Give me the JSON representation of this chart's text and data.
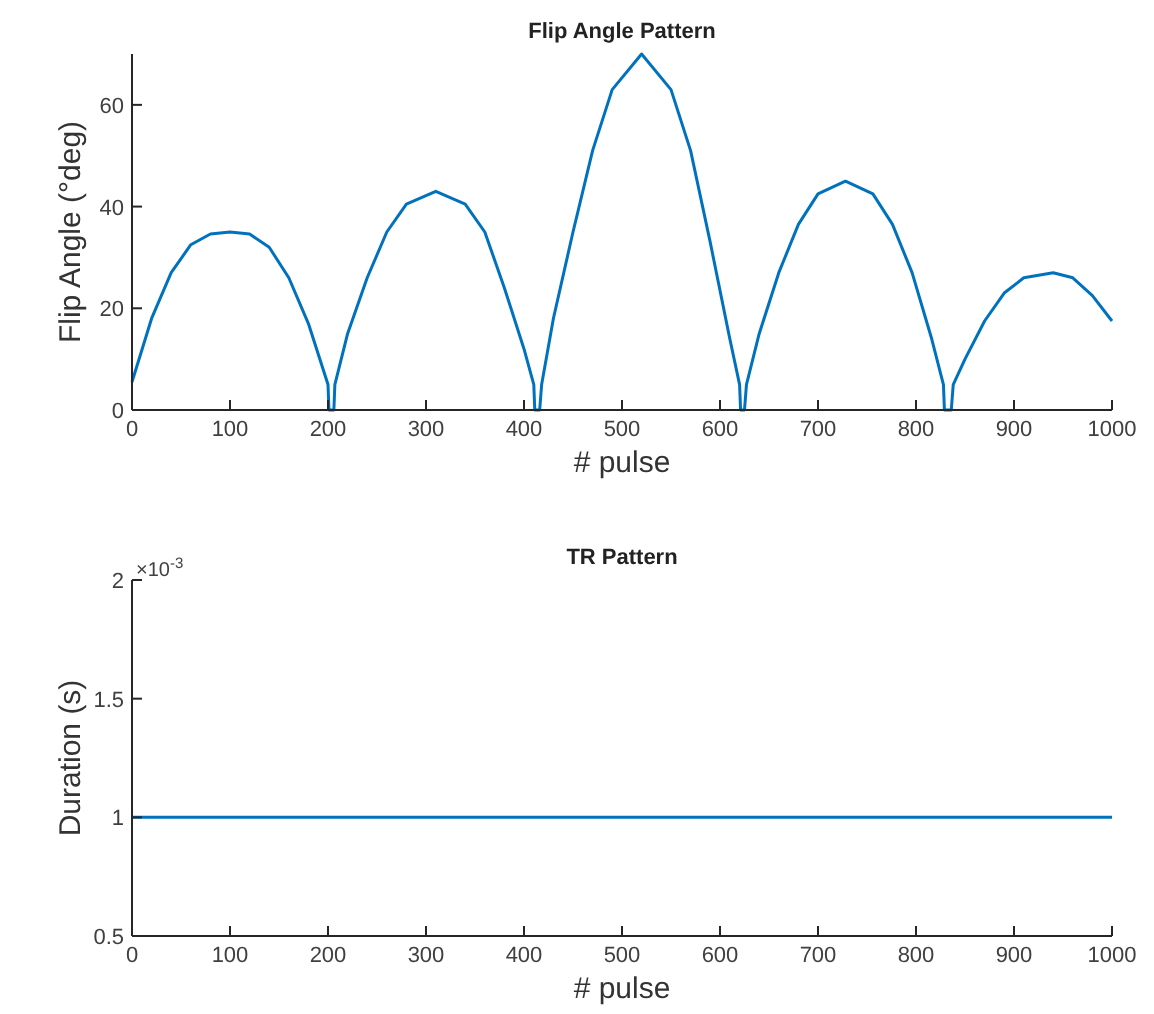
{
  "chart_data": [
    {
      "type": "line",
      "title": "Flip Angle Pattern",
      "xlabel": "# pulse",
      "ylabel": "Flip Angle (°deg)",
      "xlim": [
        0,
        1000
      ],
      "ylim": [
        0,
        70
      ],
      "xticks": [
        0,
        100,
        200,
        300,
        400,
        500,
        600,
        700,
        800,
        900,
        1000
      ],
      "yticks": [
        0,
        20,
        40,
        60
      ],
      "grid": false,
      "series": [
        {
          "color": "#0072bd",
          "x": [
            0,
            20,
            40,
            60,
            80,
            100,
            120,
            140,
            160,
            180,
            195,
            200,
            201,
            206,
            207,
            220,
            240,
            260,
            280,
            310,
            340,
            360,
            380,
            400,
            410,
            411,
            416,
            418,
            430,
            450,
            470,
            490,
            520,
            550,
            570,
            590,
            610,
            620,
            621,
            625,
            627,
            640,
            660,
            680,
            700,
            728,
            756,
            776,
            796,
            816,
            828,
            829,
            836,
            838,
            850,
            870,
            890,
            910,
            940,
            960,
            980,
            1000
          ],
          "values": [
            5.5,
            18,
            27,
            32.5,
            34.6,
            35,
            34.6,
            32,
            26,
            17,
            8,
            5,
            0,
            0,
            5,
            15,
            26,
            35,
            40.5,
            43,
            40.5,
            35,
            24,
            12,
            5,
            0,
            0,
            5,
            18,
            35,
            51,
            63,
            70,
            63,
            51,
            33,
            14,
            5,
            0,
            0,
            5,
            15,
            27,
            36.5,
            42.5,
            45,
            42.5,
            36.5,
            27,
            14,
            5,
            0,
            0,
            5,
            10,
            17.5,
            23,
            26,
            27,
            26,
            22.5,
            17.5
          ]
        }
      ]
    },
    {
      "type": "line",
      "title": "TR Pattern",
      "xlabel": "# pulse",
      "ylabel": "Duration (s)",
      "xlim": [
        0,
        1000
      ],
      "ylim": [
        0.5,
        2
      ],
      "xticks": [
        0,
        100,
        200,
        300,
        400,
        500,
        600,
        700,
        800,
        900,
        1000
      ],
      "yticks": [
        0.5,
        1,
        1.5,
        2
      ],
      "grid": false,
      "annotations": [
        "×10$^{-3}$"
      ],
      "series": [
        {
          "color": "#0072bd",
          "x": [
            0,
            1000
          ],
          "values": [
            1,
            1
          ]
        }
      ]
    }
  ]
}
